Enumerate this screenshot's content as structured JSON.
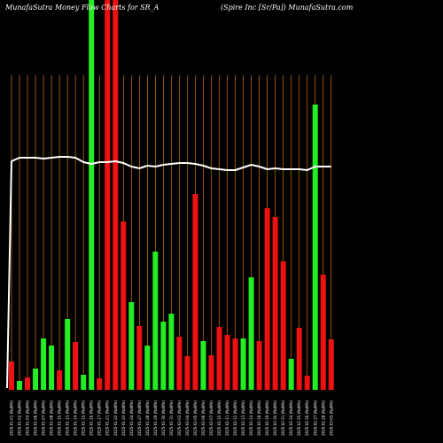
{
  "header": {
    "left_title": "MunafaSutra  Money Flow  Charts for SR_A",
    "right_title": "(Spire   Inc [Sr/Pa]) MunafaSutra.com"
  },
  "colors": {
    "background": "#000000",
    "up": "#22ee22",
    "down": "#ee1111",
    "grid": "#cc7711",
    "line": "#ffffff"
  },
  "chart_data": {
    "type": "bar",
    "title": "",
    "xlabel": "",
    "ylabel": "",
    "grid": "vertical",
    "categories": [
      "2025-01-01 (NaN%)",
      "2025-01-02 (NaN%)",
      "2025-01-03 (NaN%)",
      "2025-01-06 (NaN%)",
      "2025-01-07 (NaN%)",
      "2025-01-08 (NaN%)",
      "2025-01-10 (NaN%)",
      "2025-01-13 (NaN%)",
      "2025-01-14 (NaN%)",
      "2025-01-15 (NaN%)",
      "2025-01-16 (NaN%)",
      "2025-01-17 (NaN%)",
      "2025-01-21 (NaN%)",
      "2025-01-22 (NaN%)",
      "2025-01-23 (NaN%)",
      "2025-01-24 (NaN%)",
      "2025-01-27 (NaN%)",
      "2025-01-28 (NaN%)",
      "2025-01-29 (NaN%)",
      "2025-01-30 (NaN%)",
      "2025-01-31 (NaN%)",
      "2025-02-03 (NaN%)",
      "2025-02-04 (NaN%)",
      "2025-02-05 (NaN%)",
      "2025-02-06 (NaN%)",
      "2025-02-07 (NaN%)",
      "2025-02-10 (NaN%)",
      "2025-02-11 (NaN%)",
      "2025-02-12 (NaN%)",
      "2025-02-13 (NaN%)",
      "2025-02-14 (NaN%)",
      "2025-02-18 (NaN%)",
      "2025-02-19 (NaN%)",
      "2025-02-20 (NaN%)",
      "2025-02-21 (NaN%)",
      "2025-02-24 (NaN%)",
      "2025-02-25 (NaN%)",
      "2025-02-26 (NaN%)",
      "2025-02-27 (NaN%)",
      "2025-02-28 (NaN%)",
      "2025-03-03 (NaN%)"
    ],
    "series": [
      {
        "type": "bar",
        "values": [
          32,
          10,
          14,
          24,
          58,
          50,
          22,
          80,
          54,
          17,
          448,
          13,
          448,
          448,
          190,
          99,
          72,
          50,
          156,
          77,
          86,
          60,
          38,
          221,
          55,
          39,
          71,
          62,
          58,
          58,
          127,
          55,
          205,
          195,
          145,
          35,
          70,
          16,
          322,
          130,
          57
        ],
        "colors": [
          "red",
          "green",
          "red",
          "green",
          "green",
          "green",
          "red",
          "green",
          "red",
          "green",
          "green",
          "red",
          "red",
          "red",
          "red",
          "green",
          "red",
          "green",
          "green",
          "green",
          "green",
          "red",
          "red",
          "red",
          "green",
          "red",
          "red",
          "red",
          "red",
          "green",
          "green",
          "red",
          "red",
          "red",
          "red",
          "green",
          "red",
          "red",
          "green",
          "red",
          "red"
        ]
      },
      {
        "type": "line",
        "color": "white",
        "values": [
          258,
          262,
          262,
          262,
          261,
          262,
          263,
          263,
          262,
          257,
          255,
          257,
          257,
          258,
          256,
          252,
          250,
          253,
          252,
          254,
          255,
          256,
          256,
          255,
          253,
          250,
          249,
          248,
          248,
          251,
          254,
          252,
          249,
          250,
          249,
          249,
          249,
          248,
          252,
          252,
          252
        ]
      }
    ],
    "ylim": [
      0,
      440
    ]
  }
}
